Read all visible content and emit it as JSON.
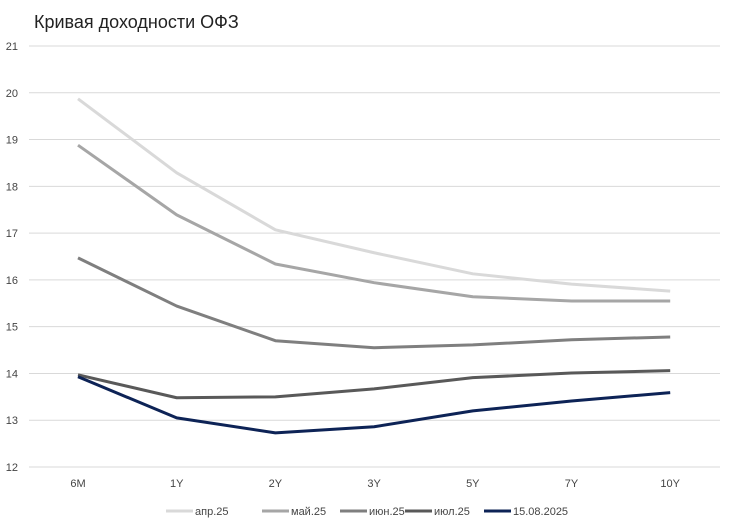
{
  "chart_data": {
    "type": "line",
    "title": "Кривая доходности ОФЗ",
    "xlabel": "",
    "ylabel": "",
    "categories": [
      "6M",
      "1Y",
      "2Y",
      "3Y",
      "5Y",
      "7Y",
      "10Y"
    ],
    "ylim": [
      12,
      21
    ],
    "yticks": [
      "12",
      "13",
      "14",
      "15",
      "16",
      "17",
      "18",
      "19",
      "20",
      "21"
    ],
    "grid": true,
    "legend": "bottom",
    "series": [
      {
        "name": "апр.25",
        "color": "#d9d9d9",
        "values": [
          19.87,
          18.29,
          17.07,
          16.58,
          16.13,
          15.91,
          15.76
        ]
      },
      {
        "name": "май.25",
        "color": "#a6a6a6",
        "values": [
          18.88,
          17.39,
          16.34,
          15.94,
          15.64,
          15.55,
          15.55
        ]
      },
      {
        "name": "июн.25",
        "color": "#7f7f7f",
        "values": [
          16.47,
          15.44,
          14.7,
          14.55,
          14.61,
          14.72,
          14.78
        ]
      },
      {
        "name": "июл.25",
        "color": "#595959",
        "values": [
          13.97,
          13.48,
          13.5,
          13.67,
          13.91,
          14.01,
          14.06
        ]
      },
      {
        "name": "15.08.2025",
        "color": "#0d2356",
        "values": [
          13.93,
          13.05,
          12.73,
          12.86,
          13.2,
          13.41,
          13.59
        ]
      }
    ]
  }
}
